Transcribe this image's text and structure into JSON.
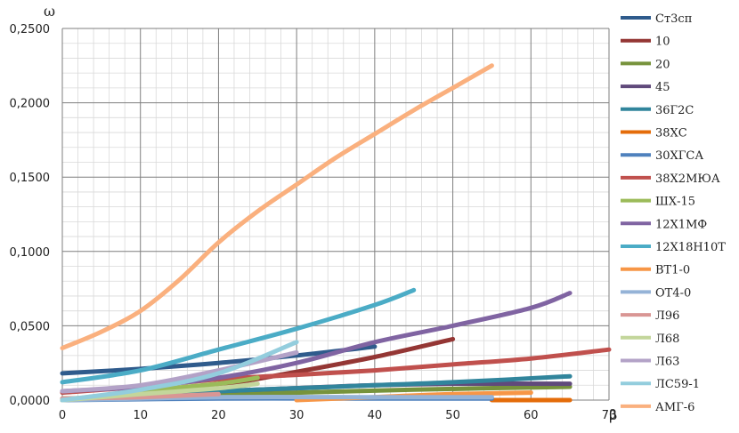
{
  "chart_data": {
    "type": "line",
    "ylabel": "ω",
    "xlabel": "β",
    "xlim": [
      0,
      70
    ],
    "ylim": [
      0,
      0.25
    ],
    "x_ticks": [
      "0",
      "10",
      "20",
      "30",
      "40",
      "50",
      "60",
      "70"
    ],
    "y_ticks": [
      "0,0000",
      "0,0500",
      "0,1000",
      "0,1500",
      "0,2000",
      "0,2500"
    ],
    "grid": true,
    "legend_position": "right",
    "series": [
      {
        "name": "Ст3сп",
        "color": "#2f5b8c",
        "points": [
          [
            0,
            0.018
          ],
          [
            10,
            0.021
          ],
          [
            20,
            0.025
          ],
          [
            30,
            0.03
          ],
          [
            40,
            0.036
          ]
        ]
      },
      {
        "name": "10",
        "color": "#943634",
        "points": [
          [
            0,
            0.0
          ],
          [
            10,
            0.004
          ],
          [
            20,
            0.01
          ],
          [
            30,
            0.019
          ],
          [
            40,
            0.029
          ],
          [
            50,
            0.041
          ]
        ]
      },
      {
        "name": "20",
        "color": "#77933c",
        "points": [
          [
            0,
            0.001
          ],
          [
            15,
            0.003
          ],
          [
            30,
            0.005
          ],
          [
            45,
            0.007
          ],
          [
            65,
            0.009
          ]
        ]
      },
      {
        "name": "45",
        "color": "#604a7b",
        "points": [
          [
            0,
            0.0
          ],
          [
            10,
            0.003
          ],
          [
            20,
            0.006
          ],
          [
            30,
            0.008
          ],
          [
            40,
            0.01
          ],
          [
            50,
            0.011
          ],
          [
            65,
            0.011
          ]
        ]
      },
      {
        "name": "36Г2С",
        "color": "#31859c",
        "points": [
          [
            0,
            0.0
          ],
          [
            10,
            0.003
          ],
          [
            20,
            0.006
          ],
          [
            30,
            0.008
          ],
          [
            40,
            0.01
          ],
          [
            50,
            0.012
          ],
          [
            65,
            0.016
          ]
        ]
      },
      {
        "name": "38ХС",
        "color": "#e46c0a",
        "points": [
          [
            55,
            0.0
          ],
          [
            65,
            0.0
          ]
        ]
      },
      {
        "name": "30ХГСА",
        "color": "#4f81bd",
        "points": [
          [
            0,
            0.0
          ],
          [
            20,
            0.001
          ],
          [
            40,
            0.001
          ],
          [
            55,
            0.001
          ]
        ]
      },
      {
        "name": "38Х2МЮА",
        "color": "#c0504d",
        "points": [
          [
            0,
            0.005
          ],
          [
            10,
            0.009
          ],
          [
            20,
            0.014
          ],
          [
            30,
            0.017
          ],
          [
            40,
            0.02
          ],
          [
            50,
            0.024
          ],
          [
            60,
            0.028
          ],
          [
            70,
            0.034
          ]
        ]
      },
      {
        "name": "ШХ-15",
        "color": "#9bbb59",
        "points": [
          [
            0,
            0.0
          ],
          [
            10,
            0.006
          ],
          [
            20,
            0.011
          ],
          [
            25,
            0.015
          ]
        ]
      },
      {
        "name": "12Х1МФ",
        "color": "#8064a2",
        "points": [
          [
            0,
            0.006
          ],
          [
            10,
            0.009
          ],
          [
            20,
            0.015
          ],
          [
            30,
            0.025
          ],
          [
            40,
            0.039
          ],
          [
            50,
            0.05
          ],
          [
            60,
            0.062
          ],
          [
            65,
            0.072
          ]
        ]
      },
      {
        "name": "12Х18Н10Т",
        "color": "#4bacc6",
        "points": [
          [
            0,
            0.012
          ],
          [
            10,
            0.02
          ],
          [
            20,
            0.034
          ],
          [
            30,
            0.048
          ],
          [
            40,
            0.064
          ],
          [
            45,
            0.074
          ]
        ]
      },
      {
        "name": "ВТ1-0",
        "color": "#f79646",
        "points": [
          [
            30,
            0.0
          ],
          [
            40,
            0.002
          ],
          [
            50,
            0.004
          ],
          [
            60,
            0.005
          ]
        ]
      },
      {
        "name": "ОТ4-0",
        "color": "#95b3d7",
        "points": [
          [
            0,
            0.0
          ],
          [
            20,
            0.002
          ],
          [
            40,
            0.002
          ],
          [
            55,
            0.002
          ]
        ]
      },
      {
        "name": "Л96",
        "color": "#d99694",
        "points": [
          [
            0,
            0.001
          ],
          [
            10,
            0.002
          ],
          [
            20,
            0.004
          ]
        ]
      },
      {
        "name": "Л68",
        "color": "#c3d69b",
        "points": [
          [
            0,
            0.0
          ],
          [
            10,
            0.004
          ],
          [
            20,
            0.008
          ],
          [
            25,
            0.011
          ]
        ]
      },
      {
        "name": "Л63",
        "color": "#b3a2c7",
        "points": [
          [
            0,
            0.006
          ],
          [
            10,
            0.01
          ],
          [
            20,
            0.02
          ],
          [
            30,
            0.032
          ]
        ]
      },
      {
        "name": "ЛС59-1",
        "color": "#93cddd",
        "points": [
          [
            0,
            0.0
          ],
          [
            10,
            0.007
          ],
          [
            20,
            0.018
          ],
          [
            30,
            0.039
          ]
        ]
      },
      {
        "name": "АМГ-6",
        "color": "#fab07e",
        "points": [
          [
            0,
            0.035
          ],
          [
            5,
            0.046
          ],
          [
            10,
            0.06
          ],
          [
            15,
            0.081
          ],
          [
            20,
            0.106
          ],
          [
            25,
            0.127
          ],
          [
            30,
            0.145
          ],
          [
            35,
            0.163
          ],
          [
            40,
            0.179
          ],
          [
            45,
            0.195
          ],
          [
            50,
            0.21
          ],
          [
            55,
            0.225
          ]
        ]
      }
    ]
  }
}
